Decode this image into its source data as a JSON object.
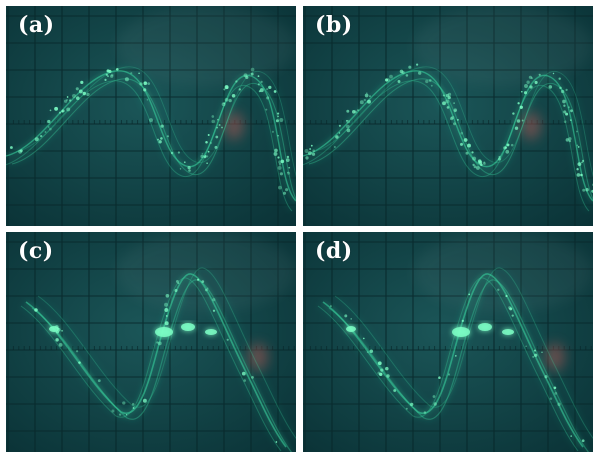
{
  "figure": {
    "panels": [
      {
        "id": "a",
        "label": "(a)",
        "trace": "sine-dotted"
      },
      {
        "id": "b",
        "label": "(b)",
        "trace": "sine-dotted"
      },
      {
        "id": "c",
        "label": "(c)",
        "trace": "peaked-bright"
      },
      {
        "id": "d",
        "label": "(d)",
        "trace": "peaked-bright"
      }
    ],
    "colors": {
      "screen_center": "#1b5658",
      "screen_edge": "#0a3236",
      "grid": "#09292c",
      "trace": "#38d6a0",
      "trace_bright": "#7dffc6",
      "glare": "#c85a55"
    }
  }
}
